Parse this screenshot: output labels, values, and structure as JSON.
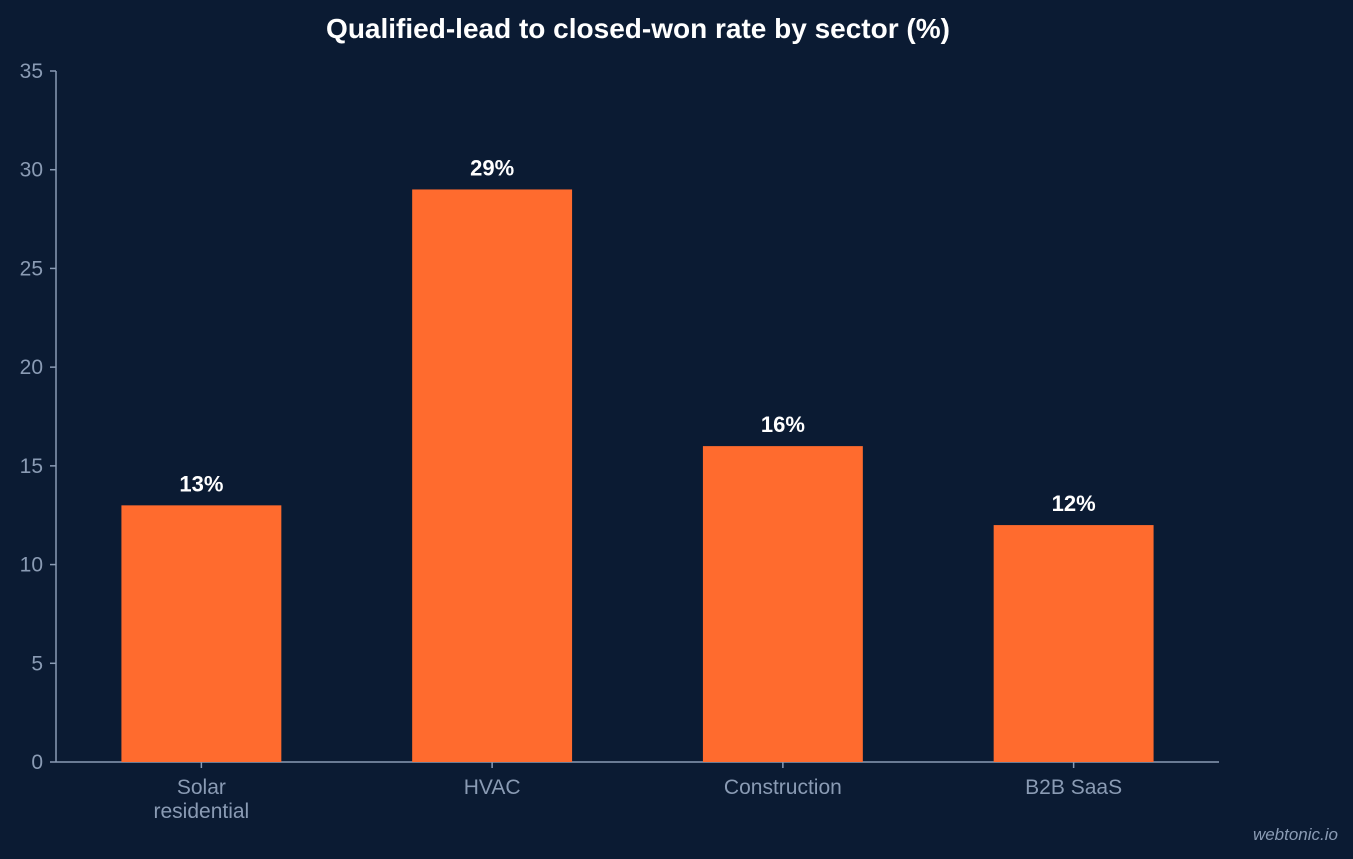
{
  "chart_data": {
    "type": "bar",
    "title": "Qualified-lead to closed-won rate by sector (%)",
    "categories": [
      "Solar\nresidential",
      "HVAC",
      "Construction",
      "B2B SaaS"
    ],
    "values": [
      13,
      29,
      16,
      12
    ],
    "data_labels": [
      "13%",
      "29%",
      "16%",
      "12%"
    ],
    "ylim": [
      0,
      35
    ],
    "yticks": [
      0,
      5,
      10,
      15,
      20,
      25,
      30,
      35
    ],
    "xlabel": "",
    "ylabel": "",
    "grid": false,
    "legend": "none"
  },
  "watermark": "webtonic.io",
  "colors": {
    "background": "#0b1b33",
    "bar": "#ff6b2e",
    "axis": "#8a9bb4",
    "text": "#ffffff"
  }
}
